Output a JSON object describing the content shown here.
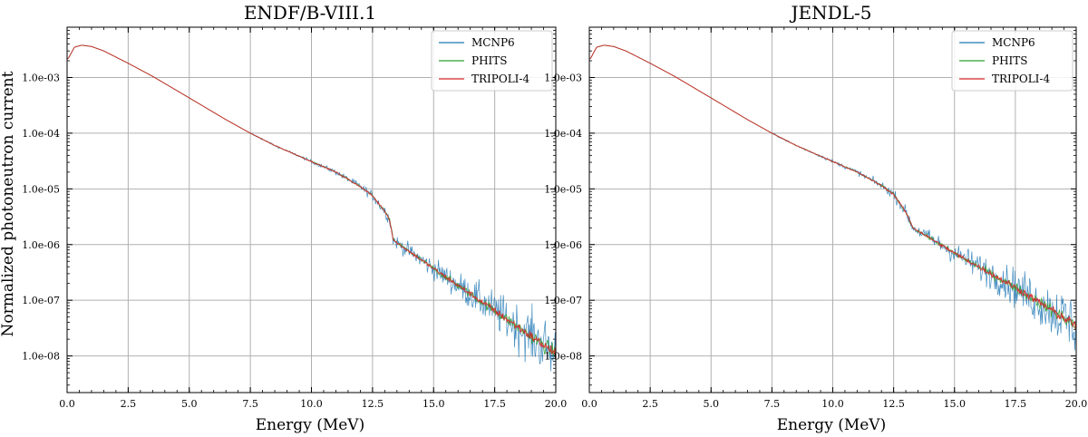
{
  "figure": {
    "ylabel": "Normalized photoneutron current"
  },
  "colors": {
    "MCNP6": "#1f77b4",
    "PHITS": "#2ca02c",
    "TRIPOLI-4": "#d62728"
  },
  "chart_data": [
    {
      "type": "line",
      "title": "ENDF/B-VIII.1",
      "xlabel": "Energy (MeV)",
      "ylabel": "Normalized photoneutron current",
      "xlim": [
        0,
        20
      ],
      "ylim": [
        2.2e-09,
        0.008
      ],
      "yscale": "log",
      "grid": true,
      "legend_position": "top-right",
      "xticks": [
        "0.0",
        "2.5",
        "5.0",
        "7.5",
        "10.0",
        "12.5",
        "15.0",
        "17.5",
        "20.0"
      ],
      "yticks": [
        "1.0e-03",
        "1.0e-04",
        "1.0e-05",
        "1.0e-06",
        "1.0e-07",
        "1.0e-08"
      ],
      "series": [
        {
          "name": "MCNP6",
          "noisy": true
        },
        {
          "name": "PHITS",
          "noisy": false
        },
        {
          "name": "TRIPOLI-4",
          "noisy": false
        }
      ],
      "x": [
        0.05,
        0.3,
        0.6,
        1.0,
        1.5,
        2.5,
        3.5,
        5.0,
        6.5,
        7.5,
        8.5,
        10.0,
        11.0,
        12.0,
        12.5,
        13.0,
        13.2,
        13.3,
        13.35,
        15.0,
        17.5,
        20.0
      ],
      "y": [
        0.0022,
        0.0035,
        0.0038,
        0.0036,
        0.003,
        0.0018,
        0.00105,
        0.00043,
        0.000175,
        0.0001,
        6e-05,
        3.1e-05,
        2e-05,
        1.1e-05,
        7.5e-06,
        4e-06,
        2.8e-06,
        1.6e-06,
        1.2e-06,
        3.7e-07,
        6.5e-08,
        1.1e-08
      ],
      "noise_start": 7.5
    },
    {
      "type": "line",
      "title": "JENDL-5",
      "xlabel": "Energy (MeV)",
      "ylabel": "",
      "xlim": [
        0,
        20
      ],
      "ylim": [
        2.2e-09,
        0.008
      ],
      "yscale": "log",
      "grid": true,
      "legend_position": "top-right",
      "xticks": [
        "0.0",
        "2.5",
        "5.0",
        "7.5",
        "10.0",
        "12.5",
        "15.0",
        "17.5",
        "20.0"
      ],
      "yticks": [
        "1.0e-03",
        "1.0e-04",
        "1.0e-05",
        "1.0e-06",
        "1.0e-07",
        "1.0e-08"
      ],
      "series": [
        {
          "name": "MCNP6",
          "noisy": true
        },
        {
          "name": "PHITS",
          "noisy": false
        },
        {
          "name": "TRIPOLI-4",
          "noisy": false
        }
      ],
      "x": [
        0.05,
        0.3,
        0.6,
        1.0,
        1.5,
        2.5,
        3.5,
        5.0,
        6.5,
        7.5,
        8.5,
        10.0,
        11.0,
        12.0,
        12.5,
        13.0,
        13.3,
        14.0,
        15.0,
        17.5,
        20.0
      ],
      "y": [
        0.0022,
        0.0035,
        0.0038,
        0.0036,
        0.003,
        0.0018,
        0.00105,
        0.00043,
        0.000175,
        0.0001,
        6e-05,
        3.1e-05,
        2e-05,
        1.15e-05,
        8e-06,
        3.8e-06,
        2e-06,
        1.3e-06,
        7e-07,
        1.7e-07,
        3.5e-08
      ],
      "noise_start": 7.5
    }
  ]
}
